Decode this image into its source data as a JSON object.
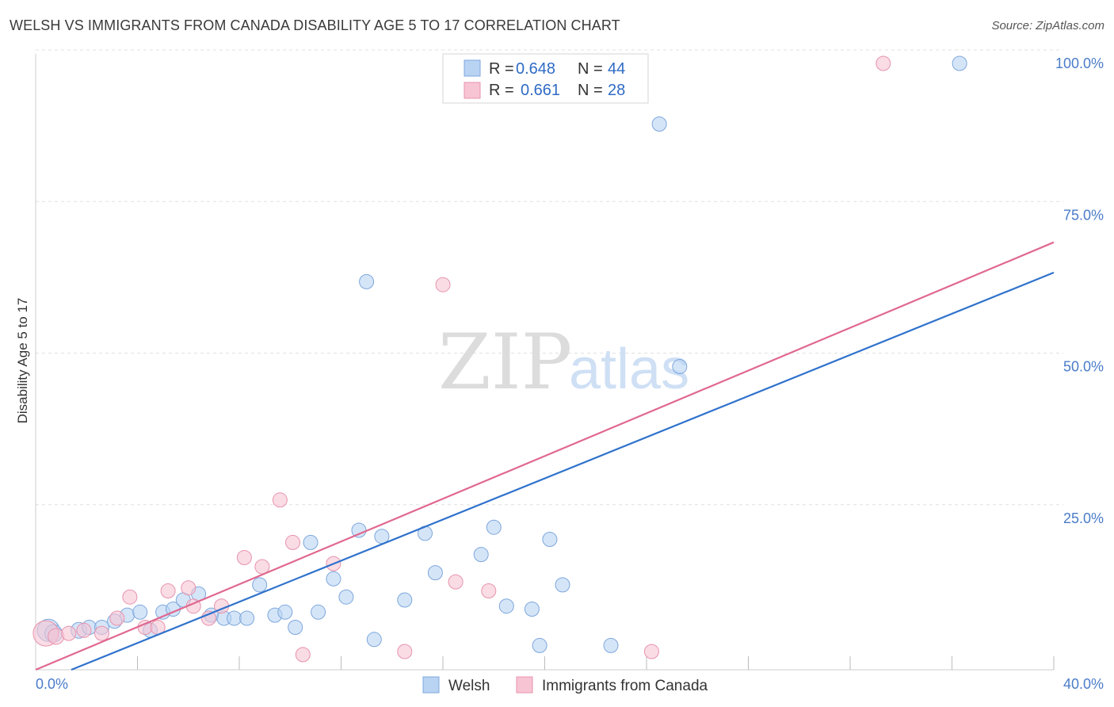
{
  "header": {
    "title": "WELSH VS IMMIGRANTS FROM CANADA DISABILITY AGE 5 TO 17 CORRELATION CHART",
    "source": "Source: ZipAtlas.com"
  },
  "watermark": {
    "zip": "ZIP",
    "atlas": "atlas"
  },
  "chart_data": {
    "type": "scatter",
    "ylabel": "Disability Age 5 to 17",
    "xlim": [
      0,
      40
    ],
    "ylim": [
      0,
      100
    ],
    "x_tick_labels": [
      {
        "value": 0,
        "label": "0.0%"
      },
      {
        "value": 40,
        "label": "40.0%"
      }
    ],
    "y_tick_labels": [
      {
        "value": 25,
        "label": "25.0%"
      },
      {
        "value": 50,
        "label": "50.0%"
      },
      {
        "value": 75,
        "label": "75.0%"
      },
      {
        "value": 100,
        "label": "100.0%"
      }
    ],
    "grid": true,
    "legend": {
      "placement": "top-center",
      "entries": [
        {
          "r_label": "R =",
          "r_value": "0.648",
          "n_label": "N =",
          "n_value": "44"
        },
        {
          "r_label": "R =",
          "r_value": "0.661",
          "n_label": "N =",
          "n_value": "28"
        }
      ]
    },
    "bottom_legend": [
      "Welsh",
      "Immigrants from Canada"
    ],
    "colors": {
      "welsh_fill": "#b9d3f3",
      "welsh_stroke": "#7da7dc",
      "welsh_line": "#2f72cc",
      "canada_fill": "#f7c4d3",
      "canada_stroke": "#e793ae",
      "canada_line": "#e0688f"
    },
    "series": [
      {
        "name": "Welsh",
        "trend": {
          "x": [
            1.4,
            40
          ],
          "y": [
            0,
            65.5
          ]
        },
        "points": [
          [
            0.5,
            6.5,
            14
          ],
          [
            0.7,
            6.0,
            11
          ],
          [
            1.7,
            6.5,
            10
          ],
          [
            2.1,
            7.0,
            9
          ],
          [
            2.6,
            7.0,
            9
          ],
          [
            3.1,
            8.0,
            9
          ],
          [
            3.6,
            9.0,
            9
          ],
          [
            4.1,
            9.5,
            9
          ],
          [
            4.5,
            6.5,
            9
          ],
          [
            5.0,
            9.5,
            9
          ],
          [
            5.4,
            10.0,
            9
          ],
          [
            5.8,
            11.5,
            9
          ],
          [
            6.4,
            12.5,
            9
          ],
          [
            6.9,
            9.0,
            9
          ],
          [
            7.4,
            8.5,
            9
          ],
          [
            7.8,
            8.5,
            9
          ],
          [
            8.3,
            8.5,
            9
          ],
          [
            8.8,
            14.0,
            9
          ],
          [
            9.4,
            9.0,
            9
          ],
          [
            9.8,
            9.5,
            9
          ],
          [
            10.2,
            7.0,
            9
          ],
          [
            10.8,
            21.0,
            9
          ],
          [
            11.1,
            9.5,
            9
          ],
          [
            11.7,
            15.0,
            9
          ],
          [
            12.2,
            12.0,
            9
          ],
          [
            12.7,
            23.0,
            9
          ],
          [
            13.0,
            64.0,
            9
          ],
          [
            13.3,
            5.0,
            9
          ],
          [
            13.6,
            22.0,
            9
          ],
          [
            14.5,
            11.5,
            9
          ],
          [
            15.3,
            22.5,
            9
          ],
          [
            15.7,
            16.0,
            9
          ],
          [
            17.5,
            19.0,
            9
          ],
          [
            18.0,
            23.5,
            9
          ],
          [
            18.5,
            10.5,
            9
          ],
          [
            19.5,
            10.0,
            9
          ],
          [
            19.8,
            4.0,
            9
          ],
          [
            20.2,
            21.5,
            9
          ],
          [
            20.7,
            14.0,
            9
          ],
          [
            22.6,
            4.0,
            9
          ],
          [
            24.5,
            90.0,
            9
          ],
          [
            25.3,
            50.0,
            9
          ],
          [
            36.3,
            100.0,
            9
          ]
        ]
      },
      {
        "name": "Immigrants from Canada",
        "trend": {
          "x": [
            0,
            40
          ],
          "y": [
            0,
            70.5
          ]
        },
        "points": [
          [
            0.4,
            6.0,
            16
          ],
          [
            0.8,
            5.5,
            10
          ],
          [
            1.3,
            6.0,
            9
          ],
          [
            1.9,
            6.5,
            9
          ],
          [
            2.6,
            6.0,
            9
          ],
          [
            3.2,
            8.5,
            9
          ],
          [
            3.7,
            12.0,
            9
          ],
          [
            4.3,
            7.0,
            9
          ],
          [
            4.8,
            7.0,
            9
          ],
          [
            5.2,
            13.0,
            9
          ],
          [
            6.0,
            13.5,
            9
          ],
          [
            6.2,
            10.5,
            9
          ],
          [
            6.8,
            8.5,
            9
          ],
          [
            7.3,
            10.5,
            9
          ],
          [
            8.2,
            18.5,
            9
          ],
          [
            8.9,
            17.0,
            9
          ],
          [
            9.6,
            28.0,
            9
          ],
          [
            10.1,
            21.0,
            9
          ],
          [
            10.5,
            2.5,
            9
          ],
          [
            11.7,
            17.5,
            9
          ],
          [
            14.5,
            3.0,
            9
          ],
          [
            16.0,
            63.5,
            9
          ],
          [
            16.5,
            14.5,
            9
          ],
          [
            17.8,
            13.0,
            9
          ],
          [
            24.2,
            3.0,
            9
          ],
          [
            33.3,
            100.0,
            9
          ]
        ]
      }
    ]
  }
}
